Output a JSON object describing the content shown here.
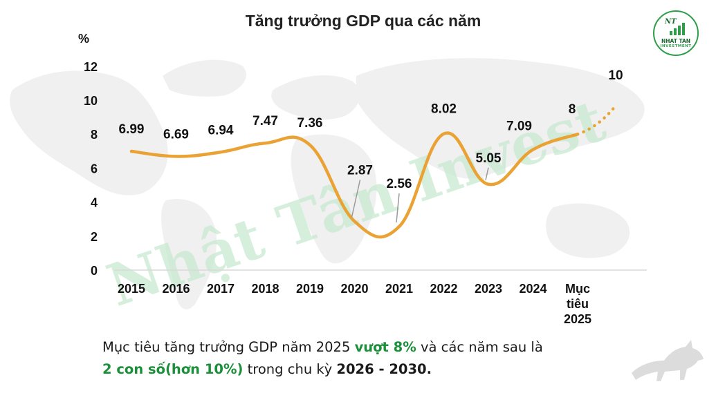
{
  "chart_data": {
    "type": "line",
    "title": "Tăng trưởng GDP qua các năm",
    "ylabel": "%",
    "ylim": [
      0,
      12
    ],
    "yticks": [
      0,
      2,
      4,
      6,
      8,
      10,
      12
    ],
    "categories": [
      "2015",
      "2016",
      "2017",
      "2018",
      "2019",
      "2020",
      "2021",
      "2022",
      "2023",
      "2024",
      "Mục tiêu 2025"
    ],
    "values": [
      6.99,
      6.69,
      6.94,
      7.47,
      7.36,
      2.87,
      2.56,
      8.02,
      5.05,
      7.09,
      8
    ],
    "data_labels": [
      "6.99",
      "6.69",
      "6.94",
      "7.47",
      "7.36",
      "2.87",
      "2.56",
      "8.02",
      "5.05",
      "7.09",
      "8"
    ],
    "projection": {
      "value": 10,
      "label": "10"
    },
    "watermark": "Nhật Tân Invest",
    "line_color": "#e9a233",
    "grid": false,
    "legend": "none"
  },
  "caption": {
    "part1": "Mục tiêu tăng trưởng GDP năm 2025 ",
    "highlight1": "vượt 8%",
    "part2": " và các năm sau là",
    "highlight2": "2 con số(hơn 10%)",
    "part3": " trong chu kỳ ",
    "highlight3": "2026 - 2030."
  },
  "logo": {
    "monogram": "NT",
    "name": "NHAT TAN",
    "tagline": "INVESTMENT",
    "color": "#2e9e4a"
  }
}
